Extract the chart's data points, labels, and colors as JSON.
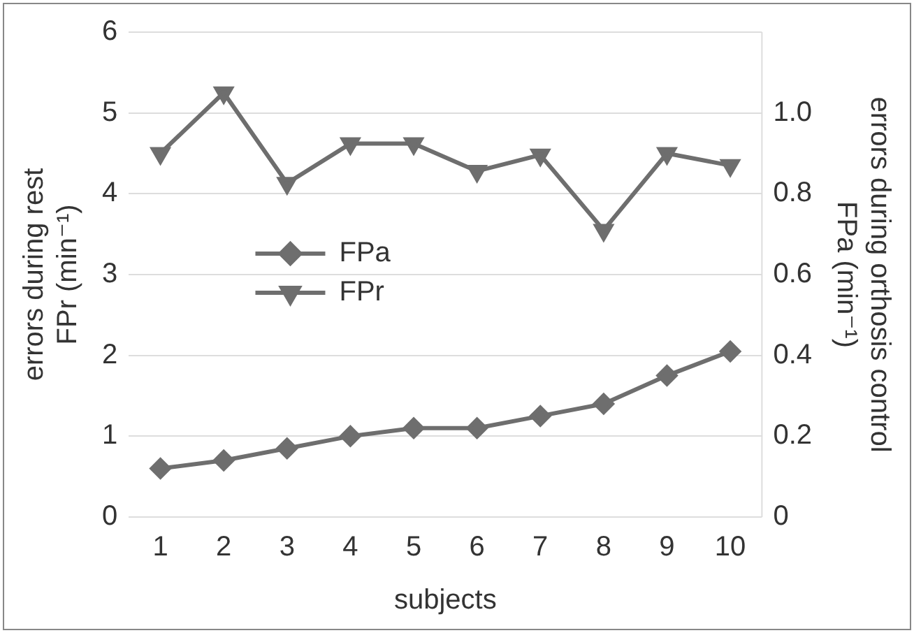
{
  "chart_data": {
    "type": "line",
    "xlabel": "subjects",
    "ylabel": "errors during rest\nFPr (min⁻¹)",
    "y2label": "errors during orthosis control\nFPa (min⁻¹)",
    "categories": [
      "1",
      "2",
      "3",
      "4",
      "5",
      "6",
      "7",
      "8",
      "9",
      "10"
    ],
    "series": [
      {
        "name": "FPa",
        "color": "#6e6e6e",
        "marker": "diamond",
        "axis": "y2",
        "values": [
          0.12,
          0.14,
          0.17,
          0.2,
          0.22,
          0.22,
          0.25,
          0.28,
          0.35,
          0.41
        ]
      },
      {
        "name": "FPr",
        "color": "#6e6e6e",
        "marker": "triangle",
        "axis": "y",
        "values": [
          4.5,
          5.25,
          4.13,
          4.62,
          4.62,
          4.28,
          4.48,
          3.55,
          4.5,
          4.35
        ]
      }
    ],
    "ylim": [
      0,
      6
    ],
    "yticks": [
      0,
      1,
      2,
      3,
      4,
      5,
      6
    ],
    "y2lim": [
      0,
      1.2
    ],
    "y2ticks": [
      0,
      0.2,
      0.4,
      0.6,
      0.8,
      {
        "value": 1.0,
        "label": "1.0"
      }
    ],
    "grid": "y",
    "legend": "center left",
    "line_style": "solid"
  }
}
